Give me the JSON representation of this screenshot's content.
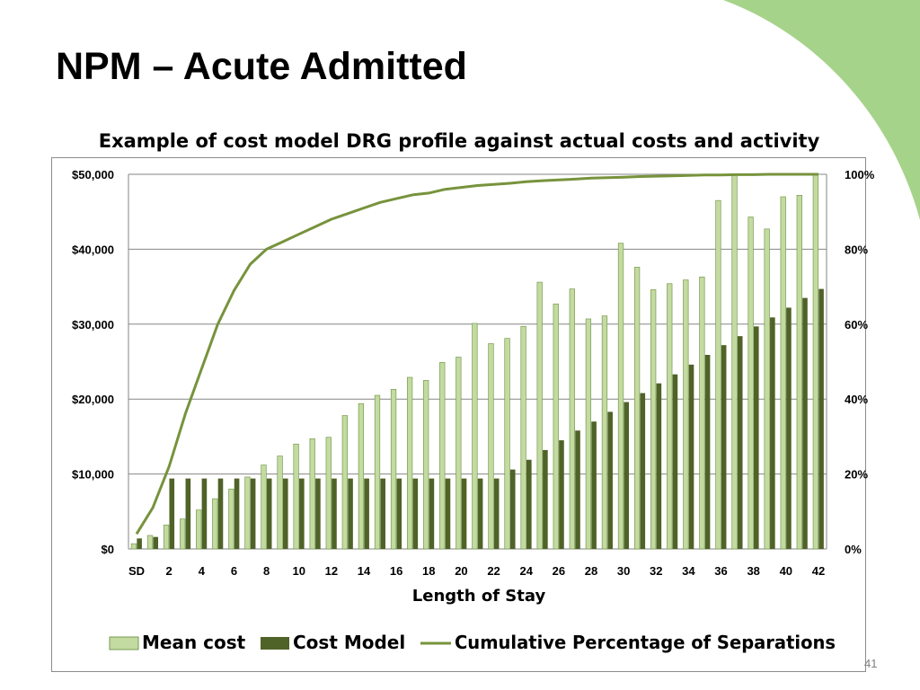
{
  "slide": {
    "title": "NPM – Acute Admitted",
    "number": "41"
  },
  "colors": {
    "mean_cost": "#c3dba0",
    "mean_cost_border": "#7a9a52",
    "cost_model": "#4f6228",
    "cumulative_line": "#77933c",
    "decor_green": "#a6d38a",
    "grid": "#868686"
  },
  "chart_data": {
    "type": "bar",
    "title": "Example of cost model DRG profile against actual costs and activity",
    "xlabel": "Length of Stay",
    "ylabel": "",
    "categories": [
      "SD",
      "1",
      "2",
      "3",
      "4",
      "5",
      "6",
      "7",
      "8",
      "9",
      "10",
      "11",
      "12",
      "13",
      "14",
      "15",
      "16",
      "17",
      "18",
      "19",
      "20",
      "21",
      "22",
      "23",
      "24",
      "25",
      "26",
      "27",
      "28",
      "29",
      "30",
      "31",
      "32",
      "33",
      "34",
      "35",
      "36",
      "37",
      "38",
      "39",
      "40",
      "41",
      "42"
    ],
    "tick_labels": [
      "SD",
      "2",
      "4",
      "6",
      "8",
      "10",
      "12",
      "14",
      "16",
      "18",
      "20",
      "22",
      "24",
      "26",
      "28",
      "30",
      "32",
      "34",
      "36",
      "38",
      "40",
      "42"
    ],
    "ylim": [
      0,
      50000
    ],
    "y_ticks": [
      "$0",
      "$10,000",
      "$20,000",
      "$30,000",
      "$40,000",
      "$50,000"
    ],
    "y2lim": [
      0,
      100
    ],
    "y2_ticks": [
      "0%",
      "20%",
      "40%",
      "60%",
      "80%",
      "100%"
    ],
    "grid": true,
    "legend_position": "bottom",
    "series": [
      {
        "name": "Mean cost",
        "kind": "bar",
        "axis": "left",
        "values": [
          700,
          1800,
          3200,
          4000,
          5200,
          6700,
          8000,
          9600,
          11200,
          12400,
          14000,
          14700,
          14900,
          17800,
          19400,
          20500,
          21300,
          22900,
          22500,
          24900,
          25600,
          30100,
          27400,
          28100,
          29700,
          35600,
          32700,
          34700,
          30700,
          31100,
          40800,
          37600,
          34600,
          35400,
          35900,
          36300,
          46500,
          50000,
          44300,
          42700,
          47000,
          47200,
          50000
        ]
      },
      {
        "name": "Cost Model",
        "kind": "bar",
        "axis": "left",
        "values": [
          1400,
          1600,
          9400,
          9400,
          9400,
          9400,
          9400,
          9400,
          9400,
          9400,
          9400,
          9400,
          9400,
          9400,
          9400,
          9400,
          9400,
          9400,
          9400,
          9400,
          9400,
          9400,
          9400,
          10600,
          11900,
          13200,
          14500,
          15800,
          17000,
          18300,
          19600,
          20800,
          22100,
          23300,
          24600,
          25900,
          27200,
          28400,
          29700,
          30900,
          32200,
          33500,
          34700
        ]
      },
      {
        "name": "Cumulative Percentage of Separations",
        "kind": "line",
        "axis": "right",
        "values": [
          4,
          11,
          22,
          36,
          48,
          60,
          69,
          76,
          80,
          82,
          84,
          86,
          88,
          89.5,
          91,
          92.5,
          93.5,
          94.5,
          95,
          96,
          96.5,
          97,
          97.3,
          97.6,
          98,
          98.3,
          98.5,
          98.7,
          99,
          99.1,
          99.2,
          99.4,
          99.5,
          99.6,
          99.7,
          99.8,
          99.8,
          99.9,
          99.9,
          100,
          100,
          100,
          100
        ]
      }
    ]
  }
}
